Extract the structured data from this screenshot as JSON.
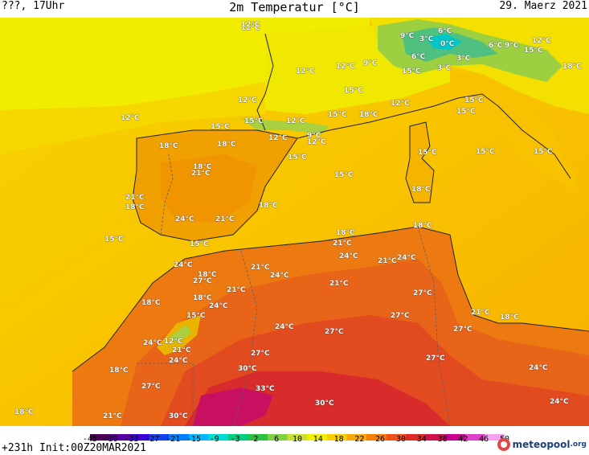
{
  "header": {
    "left": "???, 17Uhr",
    "title": "2m Temperatur [°C]",
    "right": "29. Maerz 2021"
  },
  "footer": {
    "run_info": "+231h Init:00Z20MAR2021",
    "logo_text": "meteopool",
    "logo_suffix": ".org"
  },
  "colorbar": {
    "ticks": [
      "-45",
      "-39",
      "-33",
      "-27",
      "-21",
      "-15",
      "-9",
      "-3",
      "2",
      "6",
      "10",
      "14",
      "18",
      "22",
      "26",
      "30",
      "34",
      "38",
      "42",
      "46",
      "50"
    ],
    "colors": [
      "#4b0055",
      "#5a00a0",
      "#3c00d8",
      "#1440f0",
      "#0080ff",
      "#00b8ff",
      "#00dcd0",
      "#00d080",
      "#30c040",
      "#80d040",
      "#c8e030",
      "#f0f000",
      "#f8d000",
      "#f8a800",
      "#f88000",
      "#f05018",
      "#e02828",
      "#d0104a",
      "#c80090",
      "#e040c8",
      "#f8a0f0"
    ]
  },
  "map_labels": [
    {
      "text": "12°C"
    },
    {
      "text": "9°C"
    },
    {
      "text": "6°C"
    },
    {
      "text": "3°C"
    },
    {
      "text": "0°C"
    },
    {
      "text": "6°C"
    },
    {
      "text": "9°C"
    },
    {
      "text": "12°C"
    },
    {
      "text": "15°C"
    },
    {
      "text": "18°C"
    },
    {
      "text": "12°C"
    },
    {
      "text": "12°C"
    },
    {
      "text": "9°C"
    },
    {
      "text": "6°C"
    },
    {
      "text": "3°C"
    },
    {
      "text": "15°C"
    },
    {
      "text": "3°C"
    },
    {
      "text": "12°C"
    },
    {
      "text": "12°C"
    },
    {
      "text": "12°C"
    },
    {
      "text": "15°C"
    },
    {
      "text": "12°C"
    },
    {
      "text": "15°C"
    },
    {
      "text": "15°C"
    },
    {
      "text": "18°C"
    },
    {
      "text": "15°C"
    },
    {
      "text": "15°C"
    },
    {
      "text": "12°C"
    },
    {
      "text": "15°C"
    },
    {
      "text": "9°C"
    },
    {
      "text": "12°C"
    },
    {
      "text": "18°C"
    },
    {
      "text": "18°C"
    },
    {
      "text": "12°C"
    },
    {
      "text": "15°C"
    },
    {
      "text": "15°C"
    },
    {
      "text": "18°C"
    },
    {
      "text": "21°C"
    },
    {
      "text": "15°C"
    },
    {
      "text": "15°C"
    },
    {
      "text": "15°C"
    },
    {
      "text": "18°C"
    },
    {
      "text": "21°C"
    },
    {
      "text": "18°C"
    },
    {
      "text": "18°C"
    },
    {
      "text": "15°C"
    },
    {
      "text": "24°C"
    },
    {
      "text": "21°C"
    },
    {
      "text": "15°C"
    },
    {
      "text": "18°C"
    },
    {
      "text": "18°C"
    },
    {
      "text": "21°C"
    },
    {
      "text": "18°C"
    },
    {
      "text": "21°C"
    },
    {
      "text": "24°C"
    },
    {
      "text": "24°C"
    },
    {
      "text": "21°C"
    },
    {
      "text": "24°C"
    },
    {
      "text": "24°C"
    },
    {
      "text": "18°C"
    },
    {
      "text": "27°C"
    },
    {
      "text": "21°C"
    },
    {
      "text": "21°C"
    },
    {
      "text": "18°C"
    },
    {
      "text": "24°C"
    },
    {
      "text": "27°C"
    },
    {
      "text": "21°C"
    },
    {
      "text": "18°C"
    },
    {
      "text": "15°C"
    },
    {
      "text": "27°C"
    },
    {
      "text": "27°C"
    },
    {
      "text": "24°C"
    },
    {
      "text": "27°C"
    },
    {
      "text": "24°C"
    },
    {
      "text": "12°C"
    },
    {
      "text": "21°C"
    },
    {
      "text": "27°C"
    },
    {
      "text": "24°C"
    },
    {
      "text": "27°C"
    },
    {
      "text": "18°C"
    },
    {
      "text": "30°C"
    },
    {
      "text": "24°C"
    },
    {
      "text": "27°C"
    },
    {
      "text": "33°C"
    },
    {
      "text": "30°C"
    },
    {
      "text": "24°C"
    },
    {
      "text": "18°C"
    },
    {
      "text": "21°C"
    },
    {
      "text": "30°C"
    }
  ]
}
